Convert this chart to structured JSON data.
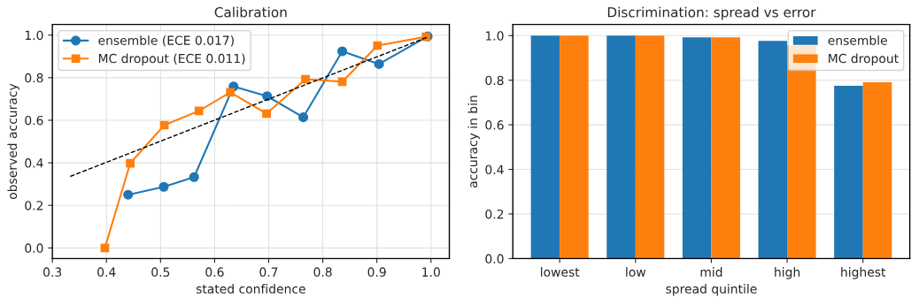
{
  "chart_data": [
    {
      "type": "line",
      "title": "Calibration",
      "xlabel": "stated confidence",
      "ylabel": "observed accuracy",
      "xlim": [
        0.3,
        1.034
      ],
      "ylim": [
        -0.05,
        1.05
      ],
      "xticks": [
        {
          "value": 0.3,
          "label": "0.3"
        },
        {
          "value": 0.4,
          "label": "0.4"
        },
        {
          "value": 0.5,
          "label": "0.5"
        },
        {
          "value": 0.6,
          "label": "0.6"
        },
        {
          "value": 0.7,
          "label": "0.7"
        },
        {
          "value": 0.8,
          "label": "0.8"
        },
        {
          "value": 0.9,
          "label": "0.9"
        },
        {
          "value": 1.0,
          "label": "1.0"
        }
      ],
      "yticks": [
        {
          "value": 0,
          "label": "0.0"
        },
        {
          "value": 0.2,
          "label": "0.2"
        },
        {
          "value": 0.4,
          "label": "0.4"
        },
        {
          "value": 0.6,
          "label": "0.6"
        },
        {
          "value": 0.8,
          "label": "0.8"
        },
        {
          "value": 1.0,
          "label": "1.0"
        }
      ],
      "grid": true,
      "legend": "top left",
      "series": [
        {
          "name": "ensemble (ECE 0.017)",
          "color": "#1f77b4",
          "marker": "circle",
          "x": [
            0.44,
            0.506,
            0.562,
            0.635,
            0.697,
            0.764,
            0.836,
            0.904,
            0.994
          ],
          "values": [
            0.25,
            0.287,
            0.333,
            0.759,
            0.713,
            0.614,
            0.924,
            0.864,
            0.994
          ]
        },
        {
          "name": "MC dropout (ECE 0.011)",
          "color": "#ff7f0e",
          "marker": "square",
          "x": [
            0.397,
            0.444,
            0.507,
            0.571,
            0.629,
            0.696,
            0.768,
            0.836,
            0.901,
            0.991
          ],
          "values": [
            0.0,
            0.398,
            0.577,
            0.644,
            0.731,
            0.631,
            0.793,
            0.781,
            0.951,
            0.992
          ]
        },
        {
          "color": "#000000",
          "marker": "none",
          "line_style": "dashed",
          "x": [
            0.333,
            0.992
          ],
          "values": [
            0.336,
            0.989
          ]
        }
      ]
    },
    {
      "type": "bar",
      "title": "Discrimination: spread vs error",
      "xlabel": "spread quintile",
      "ylabel": "accuracy in bin",
      "categories": [
        "lowest",
        "low",
        "mid",
        "high",
        "highest"
      ],
      "ylim": [
        0,
        1.05
      ],
      "yticks": [
        {
          "value": 0,
          "label": "0.0"
        },
        {
          "value": 0.2,
          "label": "0.2"
        },
        {
          "value": 0.4,
          "label": "0.4"
        },
        {
          "value": 0.6,
          "label": "0.6"
        },
        {
          "value": 0.8,
          "label": "0.8"
        },
        {
          "value": 1.0,
          "label": "1.0"
        }
      ],
      "grid": "y",
      "legend": "top right",
      "series": [
        {
          "name": "ensemble",
          "color": "#1f77b4",
          "values": [
            1.0,
            1.0,
            0.992,
            0.976,
            0.775
          ]
        },
        {
          "name": "MC dropout",
          "color": "#ff7f0e",
          "values": [
            1.0,
            1.0,
            0.992,
            0.956,
            0.791
          ]
        }
      ]
    }
  ]
}
